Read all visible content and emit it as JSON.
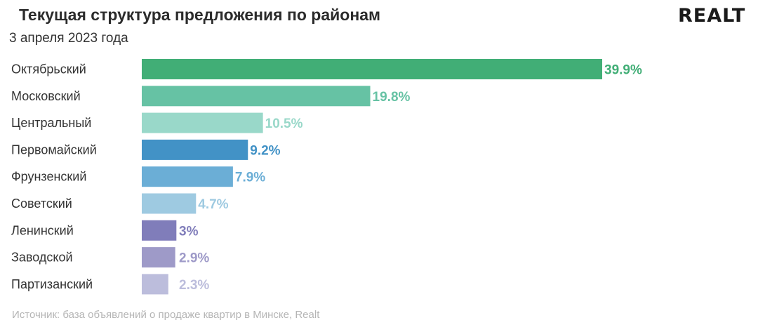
{
  "header": {
    "title": "Текущая структура предложения по районам",
    "subtitle": "3 апреля 2023 года",
    "logo": "REALT"
  },
  "footer": {
    "source": "Источник: база объявлений о продаже квартир в Минске, Realt"
  },
  "chart_data": {
    "type": "bar",
    "orientation": "horizontal",
    "categories": [
      "Октябрьский",
      "Московский",
      "Центральный",
      "Первомайский",
      "Фрунзенский",
      "Советский",
      "Ленинский",
      "Заводской",
      "Партизанский"
    ],
    "values": [
      39.9,
      19.8,
      10.5,
      9.2,
      7.9,
      4.7,
      3,
      2.9,
      2.3
    ],
    "value_labels": [
      "39.9%",
      "19.8%",
      "10.5%",
      "9.2%",
      "7.9%",
      "4.7%",
      "3%",
      "2.9%",
      "2.3%"
    ],
    "colors": [
      "#41ae76",
      "#66c2a4",
      "#99d8c9",
      "#4292c6",
      "#6baed6",
      "#9ecae1",
      "#807dba",
      "#9e9ac8",
      "#bcbddc"
    ],
    "title": "Текущая структура предложения по районам",
    "subtitle": "3 апреля 2023 года",
    "xlabel": "",
    "ylabel": "",
    "xlim": [
      0,
      39.9
    ],
    "grid": false,
    "legend": "none"
  }
}
